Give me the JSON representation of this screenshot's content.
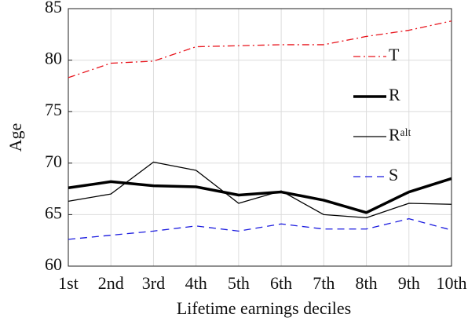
{
  "chart_data": {
    "type": "line",
    "xlabel": "Lifetime earnings deciles",
    "ylabel": "Age",
    "categories": [
      "1st",
      "2nd",
      "3rd",
      "4th",
      "5th",
      "6th",
      "7th",
      "8th",
      "9th",
      "10th"
    ],
    "ylim": [
      60,
      85
    ],
    "yticks": [
      60,
      65,
      70,
      75,
      80,
      85
    ],
    "grid": true,
    "legend": "right",
    "series": [
      {
        "name": "T",
        "color": "#e8141c",
        "dash": "dashdot",
        "width": 1.3,
        "values": [
          78.3,
          79.7,
          79.9,
          81.3,
          81.4,
          81.5,
          81.5,
          82.3,
          82.9,
          83.8
        ]
      },
      {
        "name": "R",
        "color": "#000000",
        "dash": "solid",
        "width": 3.5,
        "values": [
          67.6,
          68.2,
          67.8,
          67.7,
          66.9,
          67.2,
          66.4,
          65.2,
          67.2,
          68.5
        ]
      },
      {
        "name": "Rᵃˡᵗ",
        "color": "#000000",
        "dash": "solid",
        "width": 1.3,
        "values": [
          66.3,
          67.0,
          70.1,
          69.3,
          66.1,
          67.3,
          65.0,
          64.7,
          66.1,
          66.0
        ]
      },
      {
        "name": "S",
        "color": "#1a1adf",
        "dash": "dashed",
        "width": 1.3,
        "values": [
          62.6,
          63.0,
          63.4,
          63.9,
          63.4,
          64.1,
          63.6,
          63.6,
          64.6,
          63.5
        ]
      }
    ]
  }
}
